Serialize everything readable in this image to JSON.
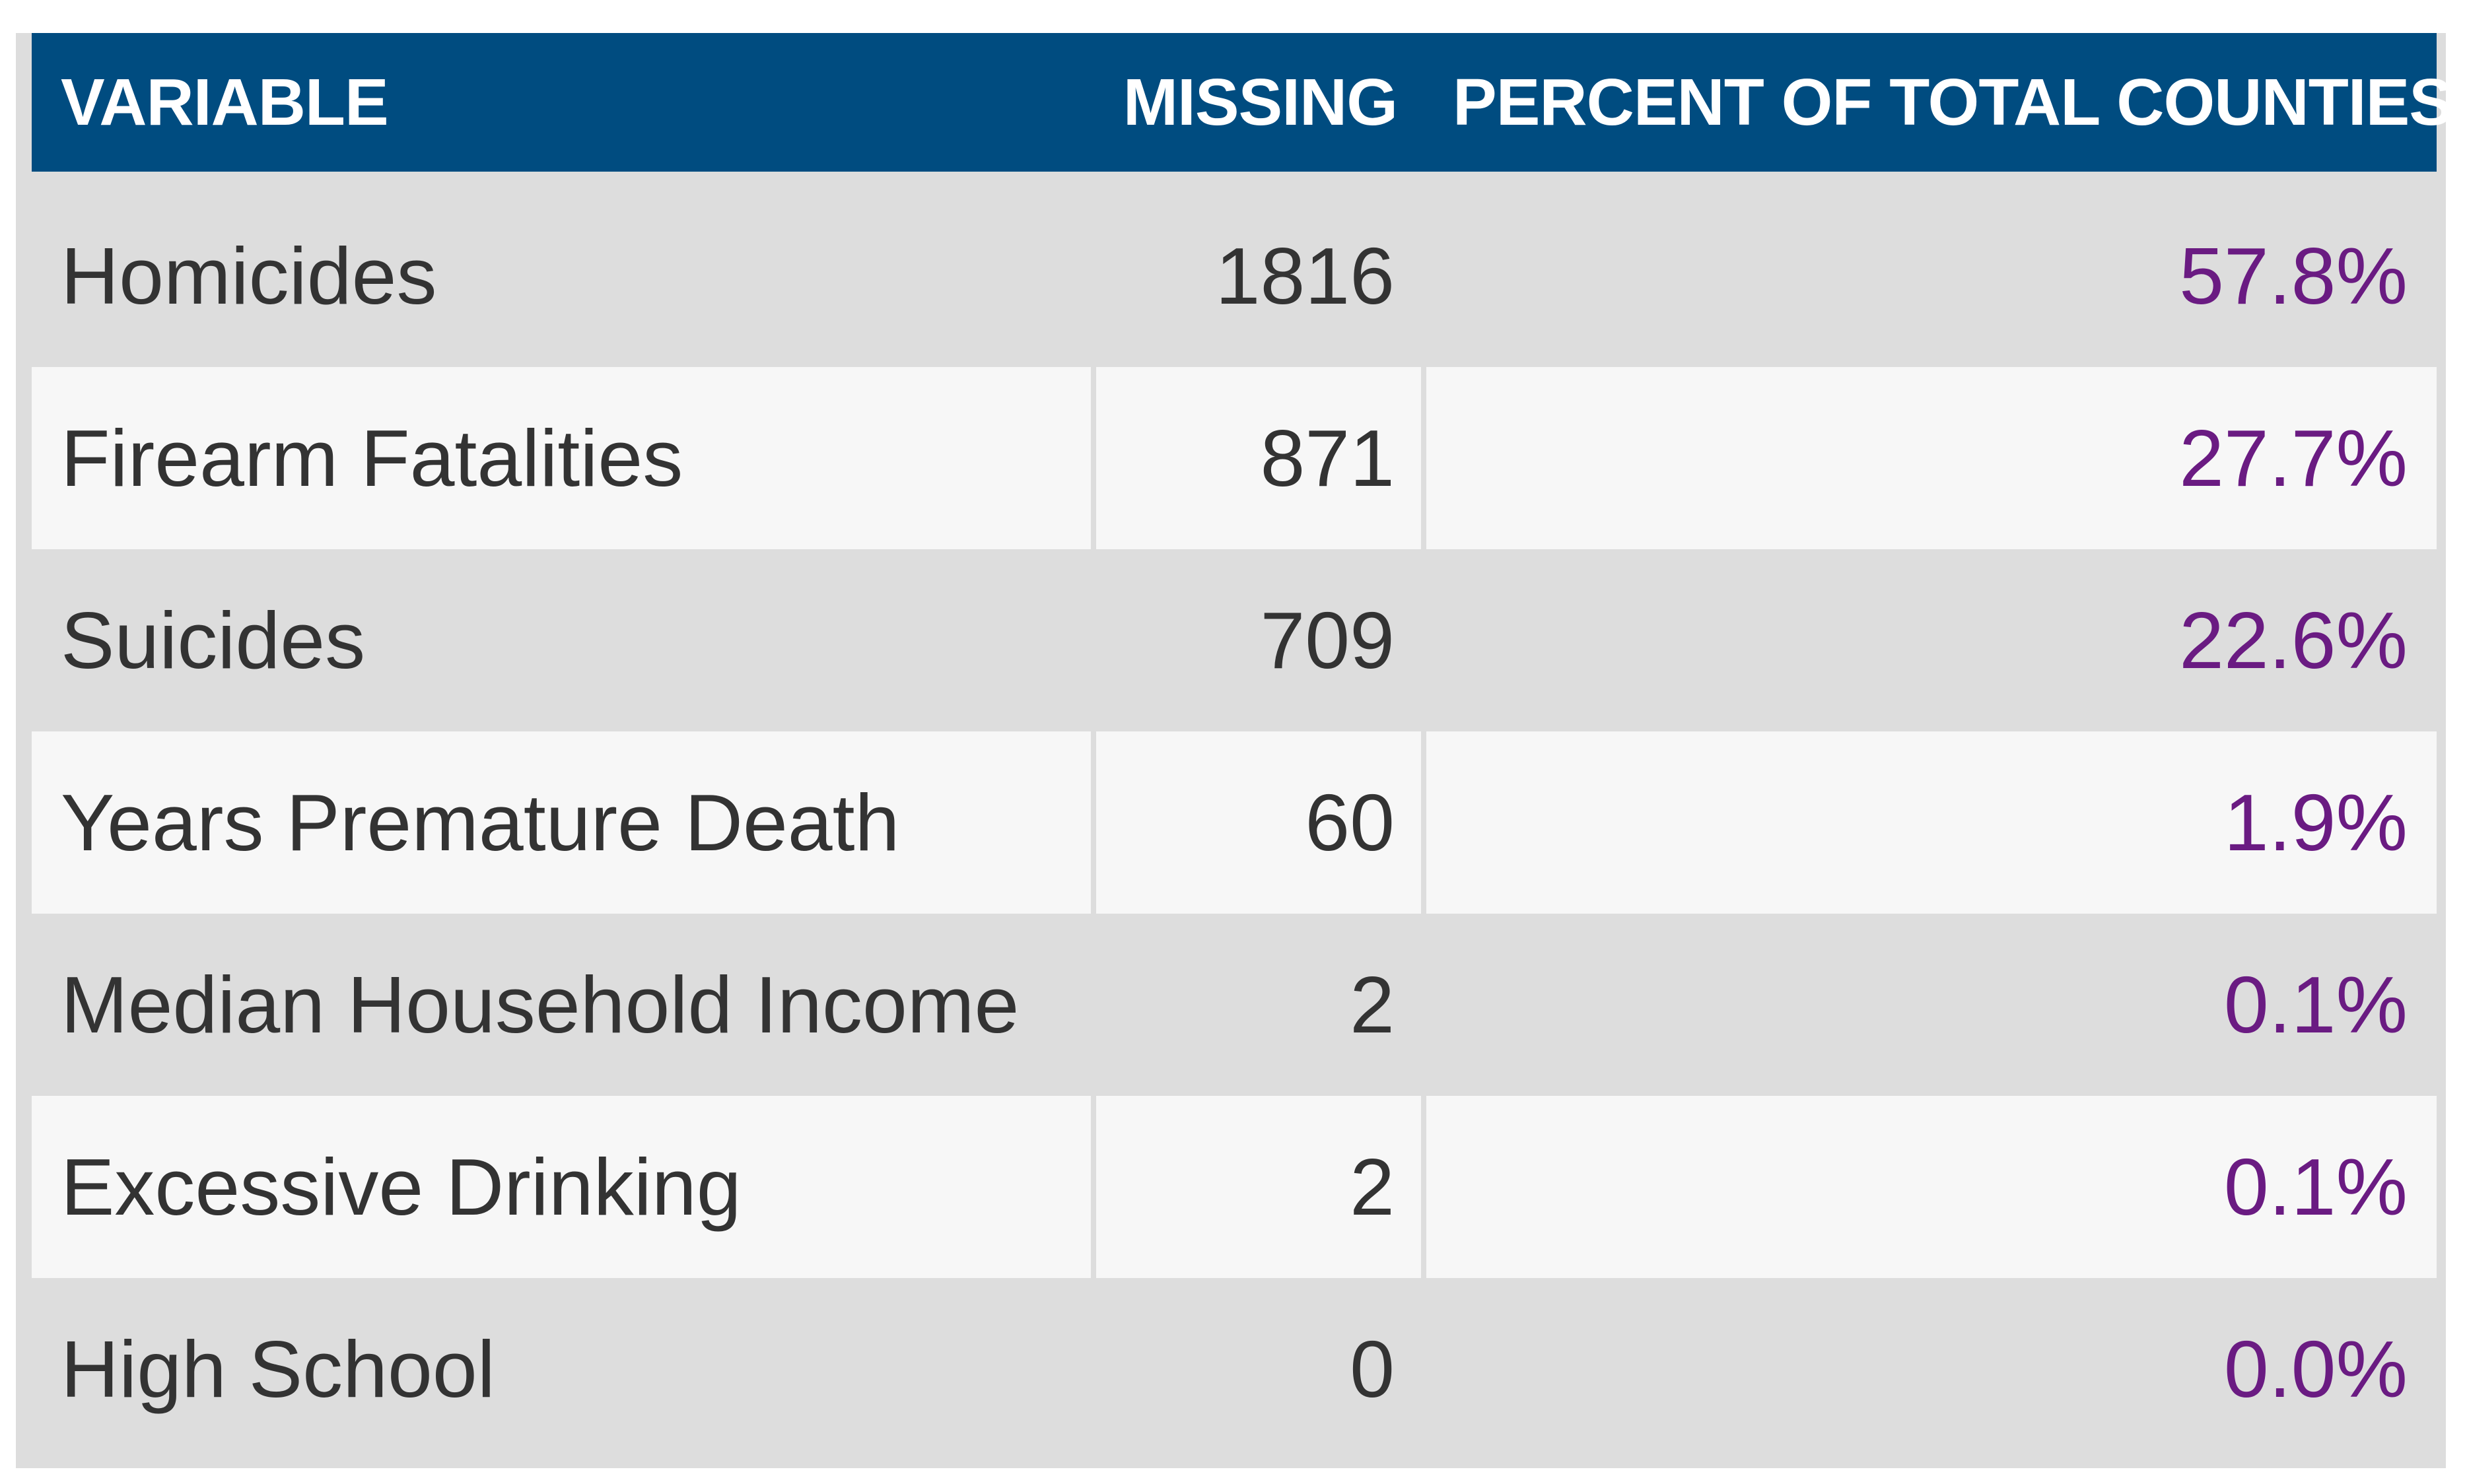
{
  "table": {
    "headers": {
      "variable": "VARIABLE",
      "missing": "MISSING",
      "percent": "PERCENT OF TOTAL COUNTIES"
    },
    "rows": [
      {
        "variable": "Homicides",
        "missing": "1816",
        "percent": "57.8%"
      },
      {
        "variable": "Firearm Fatalities",
        "missing": "871",
        "percent": "27.7%"
      },
      {
        "variable": "Suicides",
        "missing": "709",
        "percent": "22.6%"
      },
      {
        "variable": "Years Premature Death",
        "missing": "60",
        "percent": "1.9%"
      },
      {
        "variable": "Median Household Income",
        "missing": "2",
        "percent": "0.1%"
      },
      {
        "variable": "Excessive Drinking",
        "missing": "2",
        "percent": "0.1%"
      },
      {
        "variable": "High School",
        "missing": "0",
        "percent": "0.0%"
      }
    ]
  },
  "colors": {
    "header_bg": "#004c80",
    "header_text": "#ffffff",
    "body_text": "#333333",
    "percent_text": "#6a1b82",
    "border": "#dddddd",
    "alt_row_bg": "#f7f7f7"
  }
}
